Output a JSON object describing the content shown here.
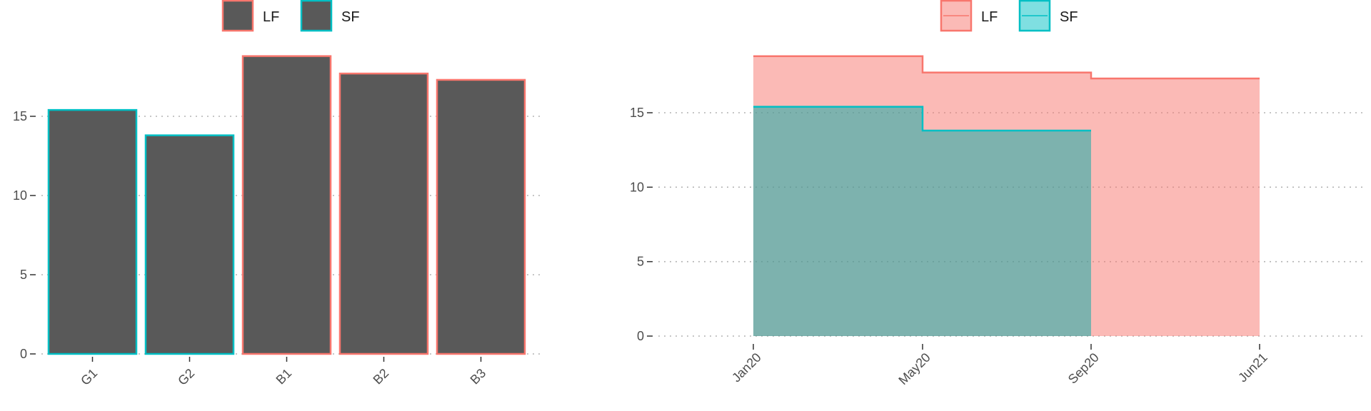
{
  "chart_data": [
    {
      "type": "bar",
      "categories": [
        "G1",
        "G2",
        "B1",
        "B2",
        "B3"
      ],
      "values": [
        15.4,
        13.8,
        18.8,
        17.7,
        17.3
      ],
      "bar_fill": "#595959",
      "outline_group": [
        "SF",
        "SF",
        "LF",
        "LF",
        "LF"
      ],
      "ylim": [
        0,
        19.5
      ],
      "yticks": [
        0,
        5,
        10,
        15
      ],
      "grid": "horizontal-dotted",
      "legend": {
        "position": "top",
        "entries": [
          {
            "label": "LF",
            "color": "#F8766D"
          },
          {
            "label": "SF",
            "color": "#00BFC4"
          }
        ]
      }
    },
    {
      "type": "area",
      "x_labels": [
        "Jan20",
        "May20",
        "Sep20",
        "Jun21"
      ],
      "series": [
        {
          "name": "LF",
          "color": "#F8766D",
          "fill": "#F8766D",
          "x": [
            "Jan20",
            "May20",
            "Sep20",
            "Jun21"
          ],
          "values": [
            18.8,
            17.7,
            17.3,
            17.3
          ]
        },
        {
          "name": "SF",
          "color": "#00BFC4",
          "fill": "#00A9A5",
          "x": [
            "Jan20",
            "May20",
            "Sep20"
          ],
          "values": [
            15.4,
            13.8,
            13.8
          ]
        }
      ],
      "step": true,
      "ylim": [
        0,
        19.5
      ],
      "yticks": [
        0,
        5,
        10,
        15
      ],
      "grid": "horizontal-dotted",
      "legend": {
        "position": "top",
        "entries": [
          {
            "label": "LF",
            "color": "#F8766D"
          },
          {
            "label": "SF",
            "color": "#00BFC4"
          }
        ]
      }
    }
  ]
}
